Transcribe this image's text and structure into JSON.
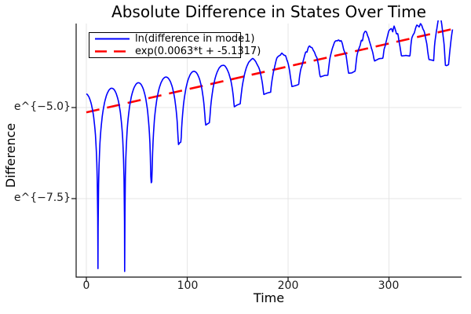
{
  "chart_data": {
    "type": "line",
    "title": "Absolute Difference in States Over Time",
    "xlabel": "Time",
    "ylabel": "Difference",
    "x_tick_values": [
      0,
      100,
      200,
      300
    ],
    "x_tick_labels": [
      "0",
      "100",
      "200",
      "300"
    ],
    "y_tick_ln_values": [
      -5.0,
      -7.5
    ],
    "y_tick_labels": [
      "e^{−5.0}",
      "e^{−7.5}"
    ],
    "x_range_shown": [
      -10,
      372
    ],
    "y_ln_range_shown": [
      -9.65,
      -2.69
    ],
    "grid": true,
    "legend_position": "top-left",
    "frame_style": "axes-only",
    "series": [
      {
        "name": "ln(difference in mode1)",
        "color": "#0000ff",
        "line_style": "solid",
        "line_width": 1.6,
        "description": "natural log of absolute state difference: rectified oscillation, arcs separated by sharp downward spikes whose depth shrinks over time while noise grows; envelope grows exponentially",
        "generator": {
          "t_start": 0,
          "t_end": 363,
          "dt": 0.45,
          "trend_slope": 0.0063,
          "trend_intercept": -5.1317,
          "peak_offset_start": 0.52,
          "peak_offset_slope": -0.0006,
          "pre_dip_t": -14,
          "pre_dip_floor": -9.0,
          "post_dip_t": 383,
          "post_dip_floor": -3.5,
          "dips": [
            {
              "t": 11.5,
              "floor": -9.42
            },
            {
              "t": 38.0,
              "floor": -9.5
            },
            {
              "t": 64.5,
              "floor": -7.05
            },
            {
              "t": 92.5,
              "floor": -5.97
            },
            {
              "t": 120.0,
              "floor": -5.45
            },
            {
              "t": 149.5,
              "floor": -4.93
            },
            {
              "t": 179.5,
              "floor": -4.6
            },
            {
              "t": 207.0,
              "floor": -4.4
            },
            {
              "t": 236.0,
              "floor": -4.12
            },
            {
              "t": 263.0,
              "floor": -4.05
            },
            {
              "t": 290.0,
              "floor": -3.66
            },
            {
              "t": 317.0,
              "floor": -3.57
            },
            {
              "t": 343.0,
              "floor": -3.7
            },
            {
              "t": 357.0,
              "floor": -3.85
            }
          ],
          "noise": {
            "start_t": 125,
            "full_t": 290,
            "max_amp": 0.16,
            "bin": 1.25
          }
        }
      },
      {
        "name": "exp(0.0063*t + -5.1317)",
        "color": "#ff0000",
        "line_style": "dash",
        "line_width": 2.6,
        "slope": 0.0063,
        "intercept": -5.1317,
        "t_start": 0,
        "t_end": 363
      }
    ],
    "colors": {
      "axis": "#111111",
      "grid": "#e4e4e4",
      "background": "#ffffff",
      "tick_text": "#1c1c1c"
    }
  }
}
